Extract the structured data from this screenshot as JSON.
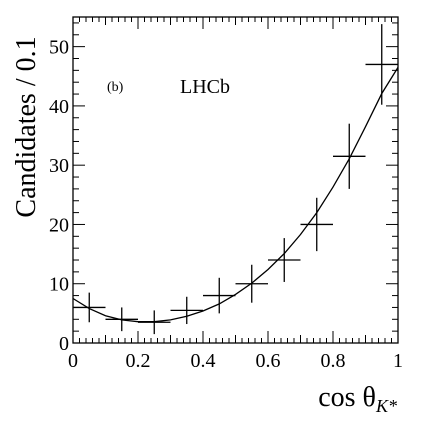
{
  "chart_data": {
    "type": "scatter",
    "ylabel": "Candidates / 0.1",
    "xlabel_main": "cos θ",
    "xlabel_sub": "K*",
    "annotations": {
      "panel": "(b)",
      "experiment": "LHCb"
    },
    "xlim": [
      0,
      1
    ],
    "ylim": [
      0,
      55
    ],
    "xticks": [
      0,
      0.2,
      0.4,
      0.6,
      0.8,
      1
    ],
    "xtick_labels": [
      "0",
      "0.2",
      "0.4",
      "0.6",
      "0.8",
      "1"
    ],
    "yticks": [
      0,
      10,
      20,
      30,
      40,
      50
    ],
    "ytick_labels": [
      "0",
      "10",
      "20",
      "30",
      "40",
      "50"
    ],
    "bin_width": 0.1,
    "points": [
      {
        "x": 0.05,
        "y": 6,
        "yerr": 2.5
      },
      {
        "x": 0.15,
        "y": 4,
        "yerr": 2.0
      },
      {
        "x": 0.25,
        "y": 3.5,
        "yerr": 2.0
      },
      {
        "x": 0.35,
        "y": 5.5,
        "yerr": 2.3
      },
      {
        "x": 0.45,
        "y": 8,
        "yerr": 3.0
      },
      {
        "x": 0.55,
        "y": 10,
        "yerr": 3.2
      },
      {
        "x": 0.65,
        "y": 14,
        "yerr": 3.7
      },
      {
        "x": 0.75,
        "y": 20,
        "yerr": 4.5
      },
      {
        "x": 0.85,
        "y": 31.5,
        "yerr": 5.5
      },
      {
        "x": 0.95,
        "y": 47,
        "yerr": 6.8
      }
    ],
    "fit_curve": {
      "x": [
        0,
        0.05,
        0.1,
        0.15,
        0.2,
        0.25,
        0.3,
        0.35,
        0.4,
        0.45,
        0.5,
        0.55,
        0.6,
        0.65,
        0.7,
        0.75,
        0.8,
        0.85,
        0.9,
        0.95,
        1.0
      ],
      "y": [
        7.5,
        5.8,
        4.6,
        3.9,
        3.6,
        3.6,
        3.9,
        4.5,
        5.4,
        6.6,
        8.2,
        10.1,
        12.4,
        15.1,
        18.3,
        22.0,
        26.3,
        31.1,
        36.5,
        42.1,
        46.5
      ]
    }
  }
}
